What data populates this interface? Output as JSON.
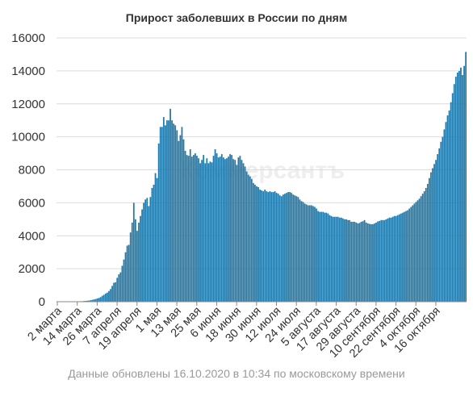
{
  "watermark": "Коммерсантъ",
  "footer": "Данные обновлены 16.10.2020 в 10:34 по московскому времени",
  "colors": {
    "bar": "#1f78a8",
    "grid": "#dcdcdc",
    "axis": "#888888"
  },
  "chart_data": {
    "type": "bar",
    "title": "Прирост заболевших в России по дням",
    "xlabel": "",
    "ylabel": "",
    "ylim": [
      0,
      16000
    ],
    "yticks": [
      0,
      2000,
      4000,
      6000,
      8000,
      10000,
      12000,
      14000,
      16000
    ],
    "grid": true,
    "legend": "none",
    "start_date": "2020-03-02",
    "end_date": "2020-10-16",
    "tick_labels": [
      "2 марта",
      "14 марта",
      "26 марта",
      "7 апреля",
      "19 апреля",
      "1 мая",
      "13 мая",
      "25 мая",
      "6 июня",
      "18 июня",
      "30 июня",
      "12 июля",
      "24 июля",
      "5 августа",
      "17 августа",
      "29 августа",
      "10 сентября",
      "22 сентября",
      "4 октября",
      "16 октября"
    ],
    "values": [
      0,
      0,
      0,
      1,
      1,
      1,
      2,
      2,
      2,
      5,
      10,
      10,
      15,
      20,
      30,
      30,
      40,
      50,
      60,
      70,
      90,
      110,
      140,
      160,
      200,
      230,
      280,
      360,
      420,
      500,
      550,
      650,
      770,
      960,
      1150,
      1180,
      1450,
      1660,
      1780,
      2180,
      2560,
      3000,
      3400,
      3450,
      4200,
      4800,
      6000,
      5000,
      4300,
      4800,
      5200,
      5600,
      6000,
      6200,
      6300,
      5800,
      6350,
      6900,
      7100,
      7800,
      7500,
      9600,
      10600,
      10600,
      11200,
      10700,
      11000,
      11000,
      11700,
      11000,
      10800,
      10700,
      10400,
      9750,
      10100,
      10600,
      9850,
      9150,
      8900,
      8850,
      9250,
      8800,
      8900,
      9000,
      8850,
      8700,
      8400,
      8600,
      8900,
      8400,
      8700,
      8400,
      8500,
      8450,
      8850,
      9250,
      9000,
      8750,
      8800,
      8950,
      8750,
      8650,
      8700,
      8800,
      8950,
      8900,
      8650,
      8600,
      8300,
      8750,
      8850,
      8600,
      8400,
      8200,
      7900,
      7700,
      7600,
      7450,
      7200,
      7100,
      7000,
      6950,
      6800,
      6750,
      6700,
      6800,
      6700,
      6650,
      6700,
      6650,
      6650,
      6700,
      6600,
      6550,
      6450,
      6400,
      6500,
      6550,
      6600,
      6650,
      6650,
      6600,
      6500,
      6450,
      6400,
      6350,
      6200,
      6100,
      6050,
      5950,
      5900,
      5850,
      5850,
      5850,
      5800,
      5750,
      5650,
      5500,
      5450,
      5450,
      5450,
      5400,
      5400,
      5350,
      5250,
      5200,
      5150,
      5150,
      5150,
      5150,
      5100,
      5100,
      5050,
      5000,
      5000,
      4950,
      4950,
      4850,
      4850,
      4850,
      4800,
      4750,
      4780,
      4850,
      4880,
      4950,
      4800,
      4750,
      4720,
      4700,
      4700,
      4750,
      4800,
      4870,
      4900,
      4950,
      4950,
      4950,
      5000,
      5050,
      5100,
      5100,
      5150,
      5200,
      5200,
      5250,
      5300,
      5350,
      5400,
      5450,
      5500,
      5550,
      5650,
      5750,
      5850,
      5950,
      6050,
      6150,
      6250,
      6400,
      6550,
      6700,
      6900,
      7150,
      7500,
      7850,
      8100,
      8350,
      8600,
      8950,
      9300,
      9700,
      10000,
      10450,
      10900,
      11300,
      11600,
      12100,
      12650,
      13200,
      13650,
      13900,
      14000,
      14200,
      13750,
      14300,
      15150
    ]
  }
}
